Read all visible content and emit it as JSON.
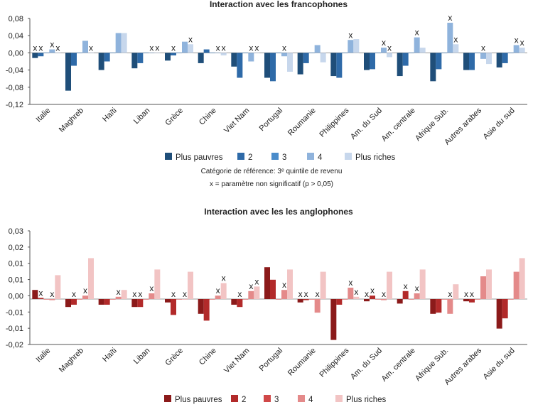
{
  "chart_data": [
    {
      "type": "bar",
      "title": "Interaction avec les francophones",
      "ylim": [
        -0.12,
        0.08
      ],
      "yticks": [
        "0,08",
        "0,04",
        "0,00",
        "-0,04",
        "-0,08",
        "-0,12"
      ],
      "categories": [
        "Italie",
        "Maghreb",
        "Haïti",
        "Liban",
        "Grèce",
        "Chine",
        "Viet Nam",
        "Portugal",
        "Roumanie",
        "Philippines",
        "Am. du Sud",
        "Am. centrale",
        "Afrique Sub.",
        "Autres arabes",
        "Asie du sud"
      ],
      "colors": [
        "#1f4e79",
        "#2e6aa8",
        "#4a8ccb",
        "#8fb3dc",
        "#c7d7ec"
      ],
      "series": [
        {
          "name": "Plus pauvres",
          "values": [
            -0.012,
            -0.088,
            -0.04,
            -0.036,
            -0.018,
            -0.024,
            -0.032,
            -0.058,
            -0.05,
            -0.054,
            -0.04,
            -0.054,
            -0.066,
            -0.04,
            -0.034
          ],
          "nonsig": [
            true,
            false,
            false,
            false,
            false,
            false,
            false,
            false,
            false,
            false,
            false,
            false,
            false,
            false,
            false
          ]
        },
        {
          "name": "2",
          "values": [
            -0.008,
            -0.03,
            -0.02,
            -0.024,
            -0.006,
            0.008,
            -0.058,
            -0.066,
            -0.024,
            -0.058,
            -0.038,
            -0.03,
            -0.038,
            -0.04,
            -0.024
          ],
          "nonsig": [
            true,
            false,
            false,
            false,
            true,
            false,
            false,
            false,
            false,
            false,
            false,
            false,
            false,
            false,
            false
          ]
        },
        {
          "name": "3",
          "values": [
            0.0,
            0.0,
            0.0,
            0.0,
            0.0,
            0.0,
            0.0,
            0.0,
            0.0,
            0.0,
            0.0,
            0.0,
            0.0,
            0.0,
            0.0
          ],
          "nonsig": [
            false,
            false,
            false,
            false,
            false,
            false,
            false,
            false,
            false,
            false,
            false,
            false,
            false,
            false,
            false
          ]
        },
        {
          "name": "4",
          "values": [
            0.008,
            0.028,
            0.046,
            0.0,
            0.026,
            0.0,
            -0.02,
            -0.008,
            0.018,
            0.03,
            0.012,
            0.036,
            0.07,
            -0.014,
            0.018
          ],
          "nonsig": [
            true,
            false,
            false,
            true,
            false,
            true,
            true,
            true,
            false,
            true,
            true,
            true,
            true,
            true,
            true
          ]
        },
        {
          "name": "Plus riches",
          "values": [
            0.0,
            0.0,
            0.046,
            0.0,
            0.02,
            -0.006,
            0.0,
            -0.044,
            -0.022,
            0.032,
            -0.01,
            0.012,
            0.02,
            -0.026,
            0.012
          ],
          "nonsig": [
            true,
            true,
            false,
            true,
            true,
            true,
            true,
            false,
            false,
            false,
            true,
            false,
            true,
            false,
            true
          ]
        }
      ],
      "legend": [
        "Plus pauvres",
        "2",
        "3",
        "4",
        "Plus riches"
      ],
      "notes": [
        "Catégorie de  référence: 3ᵉ quintile de revenu",
        "x = paramètre non significatif  (p > 0,05)"
      ]
    },
    {
      "type": "bar",
      "title": "Interaction avec les les anglophones",
      "ylim": [
        -0.02,
        0.03
      ],
      "yticks": [
        "0,03",
        "0,02",
        "0,01",
        "0,01",
        "0,00",
        "-0,01",
        "-0,01",
        "-0,02"
      ],
      "categories": [
        "Italie",
        "Maghreb",
        "Haïti",
        "Liban",
        "Grèce",
        "Chine",
        "Viet Nam",
        "Portugal",
        "Roumanie",
        "Philippines",
        "Am. du Sud",
        "Am. centrale",
        "Afrique Sub.",
        "Autres arabes",
        "Asie du sud"
      ],
      "colors": [
        "#8b1a1a",
        "#b22a2a",
        "#d04848",
        "#e48a8a",
        "#f2c4c4"
      ],
      "series": [
        {
          "name": "Plus pauvres",
          "values": [
            0.004,
            -0.0035,
            -0.0025,
            -0.0035,
            -0.0015,
            -0.0065,
            -0.0025,
            0.014,
            -0.0015,
            -0.018,
            -0.001,
            -0.002,
            -0.0065,
            -0.001,
            -0.013
          ],
          "nonsig": [
            false,
            false,
            false,
            true,
            false,
            false,
            false,
            false,
            true,
            false,
            true,
            false,
            false,
            true,
            false
          ]
        },
        {
          "name": "2",
          "values": [
            0.0005,
            -0.0025,
            -0.0025,
            -0.0035,
            -0.007,
            -0.0095,
            -0.0035,
            0.0085,
            -0.0005,
            -0.0025,
            0.0015,
            0.0035,
            -0.006,
            -0.0015,
            -0.0085
          ],
          "nonsig": [
            true,
            true,
            false,
            true,
            true,
            false,
            true,
            false,
            true,
            false,
            true,
            true,
            false,
            true,
            false
          ]
        },
        {
          "name": "3",
          "values": [
            0.0,
            0.0,
            0.0,
            0.0,
            0.0,
            0.0,
            0.0,
            0.0,
            0.0,
            0.0,
            0.0,
            0.0,
            0.0,
            0.0,
            0.0
          ],
          "nonsig": [
            false,
            false,
            false,
            false,
            false,
            false,
            false,
            false,
            false,
            false,
            false,
            false,
            false,
            false,
            false
          ]
        },
        {
          "name": "4",
          "values": [
            -0.0005,
            0.0015,
            0.001,
            0.0025,
            0.0,
            0.0015,
            0.0035,
            0.004,
            -0.006,
            0.005,
            -0.0005,
            0.0025,
            -0.0065,
            0.01,
            0.012
          ],
          "nonsig": [
            true,
            true,
            true,
            true,
            true,
            true,
            true,
            true,
            true,
            true,
            true,
            true,
            true,
            false,
            false
          ]
        },
        {
          "name": "Plus riches",
          "values": [
            0.0105,
            0.018,
            0.004,
            0.013,
            0.012,
            0.007,
            0.0055,
            0.013,
            0.012,
            0.001,
            0.012,
            0.013,
            0.0065,
            0.013,
            0.018
          ],
          "nonsig": [
            false,
            false,
            false,
            false,
            false,
            true,
            true,
            false,
            false,
            true,
            false,
            false,
            false,
            false,
            false
          ]
        }
      ],
      "legend": [
        "Plus pauvres",
        "2",
        "3",
        "4",
        "Plus riches"
      ]
    }
  ]
}
